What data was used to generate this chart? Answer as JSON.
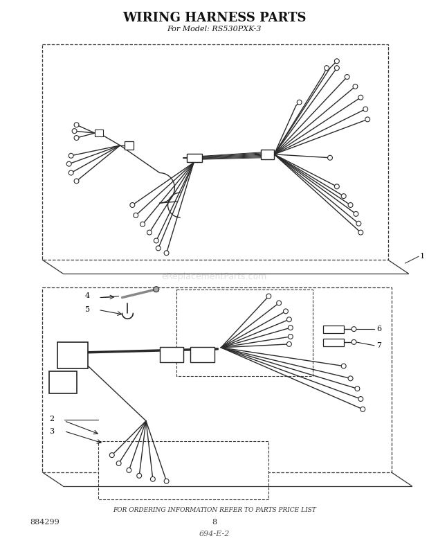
{
  "title": "WIRING HARNESS PARTS",
  "subtitle": "For Model: RS530PXK-3",
  "bg_color": "#ffffff",
  "title_fontsize": 13,
  "subtitle_fontsize": 8,
  "watermark": "eReplacementParts.com",
  "part_number": "884299",
  "page_number": "8",
  "handwritten": "694-E-2",
  "footer_note": "FOR ORDERING INFORMATION REFER TO PARTS PRICE LIST",
  "wire_color": "#2a2a2a",
  "box_color": "#222222",
  "label_fontsize": 8
}
